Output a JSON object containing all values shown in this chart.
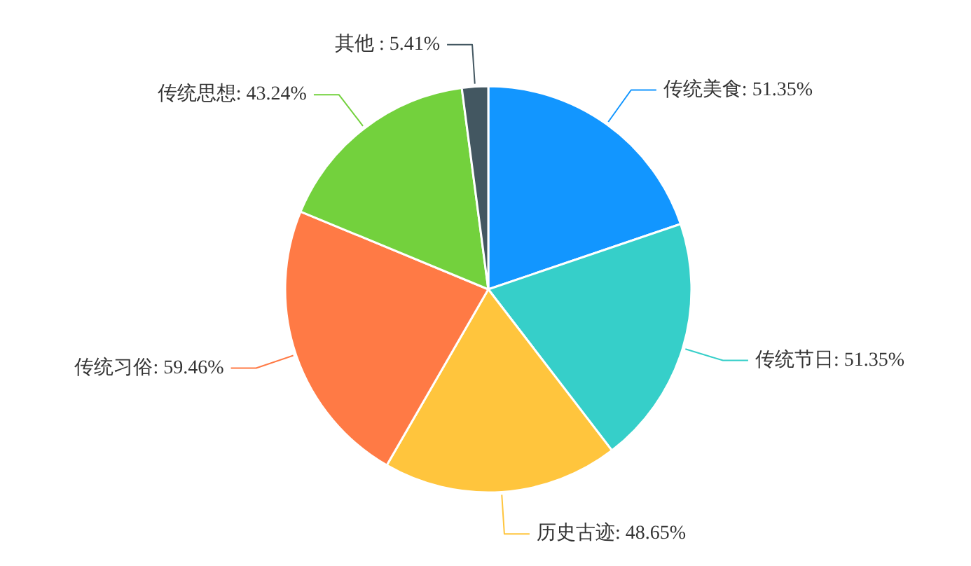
{
  "chart_data": {
    "type": "pie",
    "categories": [
      "传统美食",
      "传统节日",
      "历史古迹",
      "传统习俗",
      "传统思想",
      "其他 "
    ],
    "values": [
      51.35,
      51.35,
      48.65,
      59.46,
      43.24,
      5.41
    ],
    "value_labels": [
      "51.35%",
      "51.35%",
      "48.65%",
      "59.46%",
      "43.24%",
      "5.41%"
    ],
    "colors": [
      "#1296ff",
      "#36cfc9",
      "#ffc53d",
      "#ff7a45",
      "#73d13d",
      "#435761"
    ]
  }
}
